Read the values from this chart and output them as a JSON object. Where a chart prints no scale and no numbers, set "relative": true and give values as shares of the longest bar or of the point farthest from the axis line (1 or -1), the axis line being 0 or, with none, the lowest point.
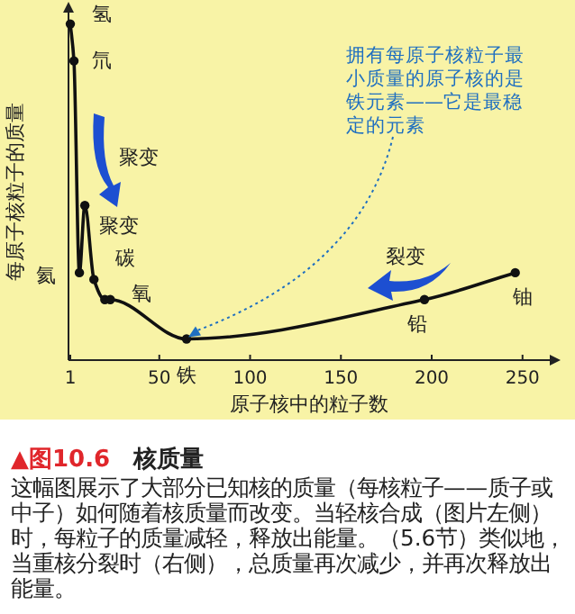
{
  "chart_data": {
    "type": "line",
    "title": "▲图10.6　核质量",
    "xlabel": "原子核中的粒子数",
    "ylabel": "每原子核粒子的质量",
    "relative": true,
    "x": [
      1,
      3,
      6,
      9,
      14,
      20,
      23,
      65,
      196,
      246
    ],
    "series": [
      {
        "color": "#111111",
        "values": [
          1,
          0.89,
          0.26,
          0.46,
          0.24,
          0.18,
          0.18,
          0.063,
          0.18,
          0.26
        ]
      }
    ],
    "xlim": [
      0,
      265
    ],
    "xticks": [
      1,
      50,
      100,
      150,
      200,
      250
    ],
    "marker": "circle",
    "annotations": [
      {
        "text": "氢",
        "x": 1,
        "y": 1
      },
      {
        "text": "氘",
        "x": 3,
        "y": 0.89
      },
      {
        "text": "氦",
        "x": 6,
        "y": 0.26
      },
      {
        "text": "碳",
        "x": 14,
        "y": 0.24
      },
      {
        "text": "氧",
        "x": 20,
        "y": 0.18
      },
      {
        "text": "铁",
        "x": 65,
        "y": 0.063
      },
      {
        "text": "铅",
        "x": 196,
        "y": 0.18
      },
      {
        "text": "铀",
        "x": 246,
        "y": 0.26
      },
      {
        "text": "拥有每原子核粒子最小质量的原子核的是铁元素——它是最稳定的元素",
        "x": 65,
        "y": 0.063
      },
      "聚变",
      "聚变",
      "裂变",
      "这幅图展示了大部分已知核的质量（每核粒子——质子或中子）如何随着核质量而改变。当轻核合成（图片左侧）时，每粒子的质量减轻，释放出能量。（5.6节）类似地，当重核分裂时（右侧），总质量再次减少，并再次释放出能量。"
    ]
  }
}
